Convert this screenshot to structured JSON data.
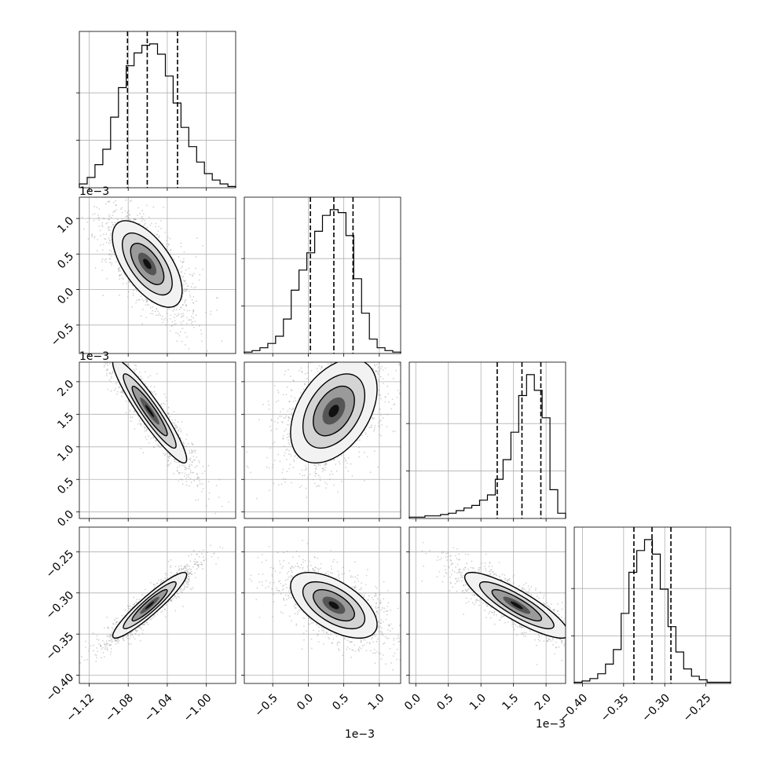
{
  "chart_data": {
    "type": "corner",
    "title": "",
    "parameters": 4,
    "axes": [
      {
        "label": "",
        "range": [
          -1.13,
          -0.97
        ],
        "ticks": [
          -1.12,
          -1.08,
          -1.04,
          -1.0
        ],
        "tick_labels": [
          "−1.12",
          "−1.08",
          "−1.04",
          "−1.00"
        ],
        "offset_text": "",
        "quantiles": [
          -1.0807,
          -1.0605,
          -1.0295
        ]
      },
      {
        "label": "",
        "range": [
          -0.9,
          1.3
        ],
        "ticks": [
          -0.5,
          0.0,
          0.5,
          1.0
        ],
        "tick_labels": [
          "−0.5",
          "0.0",
          "0.5",
          "1.0"
        ],
        "offset_text": "1e−3",
        "quantiles": [
          0.03,
          0.36,
          0.63
        ]
      },
      {
        "label": "",
        "range": [
          -0.1,
          2.3
        ],
        "ticks": [
          0.0,
          0.5,
          1.0,
          1.5,
          2.0
        ],
        "tick_labels": [
          "0.0",
          "0.5",
          "1.0",
          "1.5",
          "2.0"
        ],
        "offset_text": "1e−3",
        "quantiles": [
          1.25,
          1.63,
          1.92
        ]
      },
      {
        "label": "",
        "range": [
          -0.41,
          -0.22
        ],
        "ticks": [
          -0.4,
          -0.35,
          -0.3,
          -0.25
        ],
        "tick_labels": [
          "−0.40",
          "−0.35",
          "−0.30",
          "−0.25"
        ],
        "offset_text": "",
        "quantiles": [
          -0.3375,
          -0.3155,
          -0.2925
        ]
      }
    ],
    "histograms": [
      {
        "param": 0,
        "bin_edges_start": -1.13,
        "bin_width": 0.008,
        "counts": [
          3,
          8,
          18,
          30,
          55,
          78,
          95,
          105,
          111,
          112,
          104,
          87,
          66,
          47,
          32,
          20,
          11,
          6,
          3,
          1
        ]
      },
      {
        "param": 1,
        "bin_edges_start": -0.9,
        "bin_width": 0.11,
        "counts": [
          1,
          2,
          4,
          7,
          12,
          24,
          44,
          58,
          70,
          85,
          96,
          100,
          98,
          82,
          52,
          28,
          10,
          4,
          2,
          1
        ]
      },
      {
        "param": 2,
        "bin_edges_start": -0.1,
        "bin_width": 0.12,
        "counts": [
          1,
          1,
          2,
          2,
          3,
          4,
          6,
          8,
          10,
          14,
          18,
          30,
          45,
          66,
          94,
          110,
          98,
          77,
          22,
          4
        ]
      },
      {
        "param": 3,
        "bin_edges_start": -0.41,
        "bin_width": 0.0095,
        "counts": [
          1,
          2,
          4,
          8,
          16,
          28,
          58,
          92,
          110,
          119,
          107,
          78,
          47,
          26,
          12,
          6,
          3,
          1,
          1,
          1
        ]
      }
    ],
    "pair_correlations": [
      {
        "x": 0,
        "y": 1,
        "rho": -0.62,
        "mean": [
          -1.0605,
          0.36
        ],
        "sd": [
          0.017,
          0.29
        ]
      },
      {
        "x": 0,
        "y": 2,
        "rho": -0.93,
        "mean": [
          -1.058,
          1.55
        ],
        "sd": [
          0.018,
          0.38
        ]
      },
      {
        "x": 1,
        "y": 2,
        "rho": 0.42,
        "mean": [
          0.36,
          1.55
        ],
        "sd": [
          0.29,
          0.38
        ]
      },
      {
        "x": 0,
        "y": 3,
        "rho": 0.93,
        "mean": [
          -1.058,
          -0.315
        ],
        "sd": [
          0.018,
          0.019
        ]
      },
      {
        "x": 1,
        "y": 3,
        "rho": -0.58,
        "mean": [
          0.36,
          -0.315
        ],
        "sd": [
          0.29,
          0.019
        ]
      },
      {
        "x": 2,
        "y": 3,
        "rho": -0.86,
        "mean": [
          1.55,
          -0.315
        ],
        "sd": [
          0.38,
          0.019
        ]
      }
    ],
    "grid": true,
    "quantile_style": "dashed",
    "colors": {
      "line": "#000000",
      "scatter": "#9e9e9e",
      "grid": "#b0b0b0"
    }
  }
}
